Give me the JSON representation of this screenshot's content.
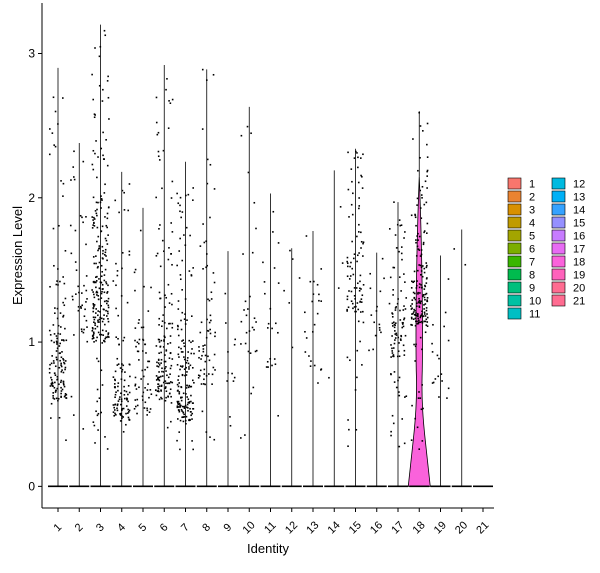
{
  "chart_data": {
    "type": "violin",
    "xlabel": "Identity",
    "ylabel": "Expression Level",
    "categories": [
      "1",
      "2",
      "3",
      "4",
      "5",
      "6",
      "7",
      "8",
      "9",
      "10",
      "11",
      "12",
      "13",
      "14",
      "15",
      "16",
      "17",
      "18",
      "19",
      "20",
      "21"
    ],
    "yticks": [
      0,
      1,
      2,
      3
    ],
    "ylim": [
      -0.15,
      3.35
    ],
    "grid": false,
    "legend": {
      "placement": "right",
      "columns": 2,
      "entries": [
        "1",
        "2",
        "3",
        "4",
        "5",
        "6",
        "7",
        "8",
        "9",
        "10",
        "11",
        "12",
        "13",
        "14",
        "15",
        "16",
        "17",
        "18",
        "19",
        "20",
        "21"
      ]
    },
    "colors": [
      "#F8766D",
      "#EA8331",
      "#D89000",
      "#C09B00",
      "#A3A500",
      "#7CAE00",
      "#39B600",
      "#00BB4E",
      "#00BF7D",
      "#00C1A3",
      "#00BFC4",
      "#00BAE0",
      "#00B0F6",
      "#35A2FF",
      "#9590FF",
      "#C77CFF",
      "#E76BF3",
      "#FA62DB",
      "#FF62BC",
      "#FF6C91",
      "#FF6C91"
    ],
    "series": [
      {
        "name": "1",
        "max": 2.9,
        "n_points": 140,
        "center": 0.6,
        "spread": 0.45
      },
      {
        "name": "2",
        "max": 2.38,
        "n_points": 45,
        "center": 1.0,
        "spread": 0.6
      },
      {
        "name": "3",
        "max": 3.2,
        "n_points": 230,
        "center": 1.0,
        "spread": 0.7
      },
      {
        "name": "4",
        "max": 2.18,
        "n_points": 110,
        "center": 0.45,
        "spread": 0.35
      },
      {
        "name": "5",
        "max": 1.93,
        "n_points": 60,
        "center": 0.5,
        "spread": 0.45
      },
      {
        "name": "6",
        "max": 2.92,
        "n_points": 150,
        "center": 0.6,
        "spread": 0.5
      },
      {
        "name": "7",
        "max": 2.25,
        "n_points": 170,
        "center": 0.45,
        "spread": 0.45
      },
      {
        "name": "8",
        "max": 2.89,
        "n_points": 70,
        "center": 0.7,
        "spread": 0.6
      },
      {
        "name": "9",
        "max": 1.63,
        "n_points": 12,
        "center": 0.7,
        "spread": 0.45
      },
      {
        "name": "10",
        "max": 2.63,
        "n_points": 30,
        "center": 0.9,
        "spread": 0.6
      },
      {
        "name": "11",
        "max": 2.03,
        "n_points": 22,
        "center": 0.8,
        "spread": 0.5
      },
      {
        "name": "12",
        "max": 1.65,
        "n_points": 6,
        "center": 1.2,
        "spread": 0.4
      },
      {
        "name": "13",
        "max": 1.77,
        "n_points": 24,
        "center": 0.8,
        "spread": 0.45
      },
      {
        "name": "14",
        "max": 2.19,
        "n_points": 4,
        "center": 1.3,
        "spread": 0.5
      },
      {
        "name": "15",
        "max": 2.34,
        "n_points": 95,
        "center": 1.2,
        "spread": 0.6
      },
      {
        "name": "16",
        "max": 1.62,
        "n_points": 16,
        "center": 0.9,
        "spread": 0.4
      },
      {
        "name": "17",
        "max": 1.97,
        "n_points": 100,
        "center": 0.9,
        "spread": 0.45
      },
      {
        "name": "18",
        "max": 2.6,
        "n_points": 190,
        "center": 1.1,
        "spread": 0.5
      },
      {
        "name": "19",
        "max": 1.6,
        "n_points": 18,
        "center": 0.7,
        "spread": 0.4
      },
      {
        "name": "20",
        "max": 1.78,
        "n_points": 2,
        "center": 1.5,
        "spread": 0.2
      },
      {
        "name": "21",
        "max": 0.0,
        "n_points": 0,
        "center": 0.0,
        "spread": 0.0
      }
    ],
    "violins_visible": [
      "18"
    ]
  }
}
